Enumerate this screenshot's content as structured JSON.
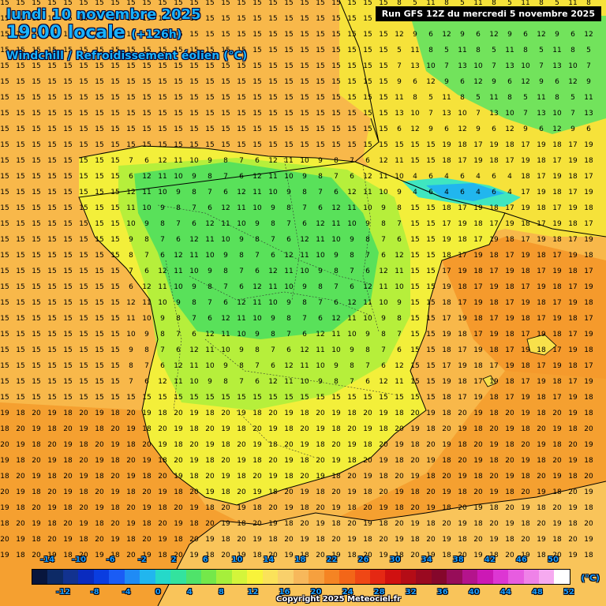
{
  "header": {
    "date": "lundi 10 novembre 2025",
    "time": "19:00 locale",
    "lead": "(+126h)",
    "parameter": "Windchill / Refroidissement éolien (°C)",
    "run": "Run GFS 12Z du mercredi 5 novembre 2025"
  },
  "legend": {
    "unit": "(°C)",
    "top_ticks": [
      "-14",
      "-10",
      "-6",
      "-2",
      "2",
      "6",
      "10",
      "14",
      "18",
      "22",
      "26",
      "30",
      "34",
      "38",
      "42",
      "46",
      "50"
    ],
    "bottom_ticks": [
      "-12",
      "-8",
      "-4",
      "0",
      "4",
      "8",
      "12",
      "16",
      "20",
      "24",
      "28",
      "32",
      "36",
      "40",
      "44",
      "48",
      "52"
    ],
    "colors": [
      "#08163d",
      "#0d2a66",
      "#12328f",
      "#0a2bbf",
      "#0a3de0",
      "#1a5cf5",
      "#1f8bf5",
      "#21b6ee",
      "#25d9c9",
      "#33e39e",
      "#4fe36a",
      "#74e84a",
      "#a6ef3b",
      "#d4f53a",
      "#f8f33a",
      "#fbe25a",
      "#f9d06b",
      "#f7b85b",
      "#f6a03e",
      "#f58423",
      "#f36618",
      "#ef4715",
      "#e52813",
      "#d01010",
      "#b40c16",
      "#9a0920",
      "#85072b",
      "#970d59",
      "#b4138c",
      "#cc18b5",
      "#dd36d3",
      "#e75ce0",
      "#ef82e8",
      "#f6aaf0",
      "#ffffff"
    ]
  },
  "map_colors": {
    "sea_warm": "#f8b84a",
    "sea_orange": "#f5a030",
    "land_yellow": "#f3ef3a",
    "land_lime": "#b6ef3b",
    "land_green": "#59e15a",
    "land_teal": "#3fe68a",
    "coast": "#000000"
  },
  "copyright": "Copyright 2025 Meteociel.fr"
}
